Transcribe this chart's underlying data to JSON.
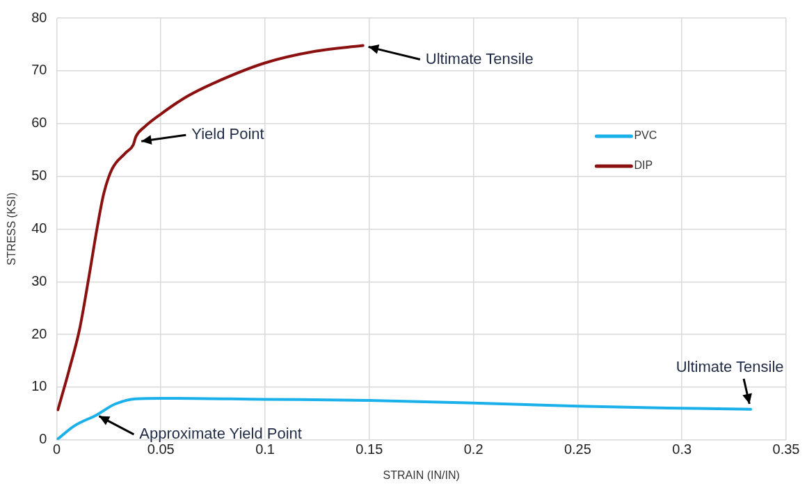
{
  "chart_data": {
    "type": "line",
    "xlabel": "STRAIN (IN/IN)",
    "ylabel": "STRESS (KSI)",
    "xlim": [
      0,
      0.35
    ],
    "xticks": [
      0,
      0.05,
      0.1,
      0.15,
      0.2,
      0.25,
      0.3,
      0.35
    ],
    "ylim": [
      0,
      80
    ],
    "yticks": [
      0,
      10,
      20,
      30,
      40,
      50,
      60,
      70,
      80
    ],
    "grid": true,
    "legend": "top right",
    "marker": "none",
    "line_style": "solid",
    "series": [
      {
        "name": "PVC",
        "color": "#1ab0ea",
        "x": [
          0,
          0.0086,
          0.019,
          0.028,
          0.038,
          0.05,
          0.1,
          0.15,
          0.2,
          0.25,
          0.3,
          0.333
        ],
        "values": [
          0,
          2.7,
          4.7,
          6.8,
          7.8,
          7.9,
          7.7,
          7.5,
          7.0,
          6.4,
          6.0,
          5.8
        ]
      },
      {
        "name": "DIP",
        "color": "#8b1010",
        "x": [
          0.0006,
          0.006,
          0.011,
          0.0156,
          0.0195,
          0.0226,
          0.0265,
          0.033,
          0.0368,
          0.038,
          0.042,
          0.05,
          0.0624,
          0.075,
          0.1,
          0.124,
          0.147
        ],
        "values": [
          5.7,
          13.3,
          21,
          31.2,
          40.4,
          46.7,
          51.3,
          54.4,
          56,
          57.5,
          59.3,
          61.8,
          65.1,
          67.6,
          71.5,
          73.7,
          74.8
        ]
      }
    ],
    "annotations": [
      {
        "text": "Ultimate Tensile",
        "x": 0.147,
        "y": 74.8
      },
      {
        "text": "Yield Point",
        "x": 0.038,
        "y": 56.5
      },
      {
        "text": "Ultimate Tensile",
        "x": 0.333,
        "y": 5.8
      },
      {
        "text": "Approximate Yield Point",
        "x": 0.018,
        "y": 5
      }
    ]
  }
}
